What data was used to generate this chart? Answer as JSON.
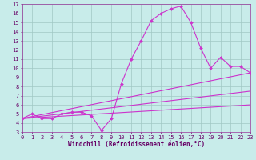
{
  "title": "",
  "xlabel": "Windchill (Refroidissement éolien,°C)",
  "xlim": [
    0,
    23
  ],
  "ylim": [
    3,
    17
  ],
  "xticks": [
    0,
    1,
    2,
    3,
    4,
    5,
    6,
    7,
    8,
    9,
    10,
    11,
    12,
    13,
    14,
    15,
    16,
    17,
    18,
    19,
    20,
    21,
    22,
    23
  ],
  "yticks": [
    3,
    4,
    5,
    6,
    7,
    8,
    9,
    10,
    11,
    12,
    13,
    14,
    15,
    16,
    17
  ],
  "background_color": "#c8ecea",
  "grid_color": "#a0c8c4",
  "line_color": "#cc33cc",
  "curve_x": [
    0,
    1,
    2,
    3,
    4,
    5,
    6,
    7,
    8,
    9,
    10,
    11,
    12,
    13,
    14,
    15,
    16,
    17,
    18,
    19,
    20,
    21,
    22,
    23
  ],
  "curve_y": [
    4.5,
    5.0,
    4.5,
    4.5,
    5.0,
    5.2,
    5.2,
    4.8,
    3.2,
    4.5,
    8.3,
    11.0,
    13.0,
    15.2,
    16.0,
    16.5,
    16.8,
    15.0,
    12.2,
    10.0,
    11.2,
    10.2,
    10.2,
    9.5
  ],
  "straight_lines": [
    {
      "x": [
        0,
        23
      ],
      "y": [
        4.5,
        9.5
      ]
    },
    {
      "x": [
        0,
        23
      ],
      "y": [
        4.5,
        7.5
      ]
    },
    {
      "x": [
        0,
        23
      ],
      "y": [
        4.5,
        6.0
      ]
    }
  ],
  "tick_fontsize": 5,
  "xlabel_fontsize": 5.5
}
